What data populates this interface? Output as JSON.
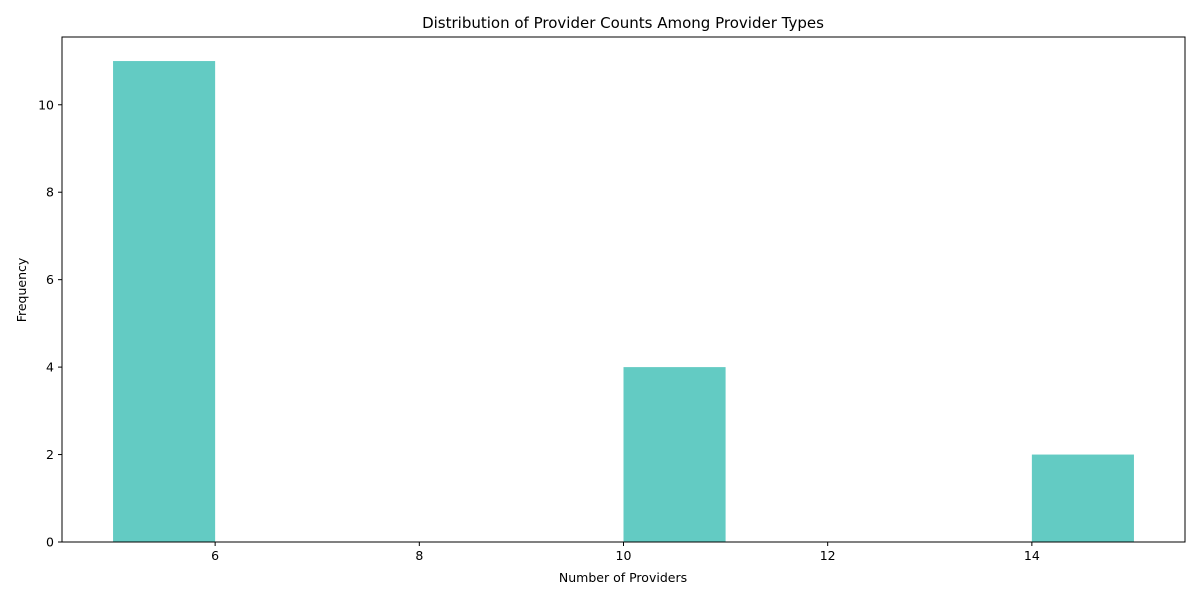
{
  "chart_data": {
    "type": "bar",
    "title": "Distribution of Provider Counts Among Provider Types",
    "xlabel": "Number of Providers",
    "ylabel": "Frequency",
    "bins": [
      {
        "start": 5,
        "end": 6,
        "value": 11
      },
      {
        "start": 10,
        "end": 11,
        "value": 4
      },
      {
        "start": 14,
        "end": 15,
        "value": 2
      }
    ],
    "xlim": [
      4.5,
      15.5
    ],
    "ylim": [
      0,
      11.55
    ],
    "xticks": [
      6,
      8,
      10,
      12,
      14
    ],
    "yticks": [
      0,
      2,
      4,
      6,
      8,
      10
    ],
    "bar_color": "#63cbc3",
    "grid": false,
    "legend": "none"
  }
}
